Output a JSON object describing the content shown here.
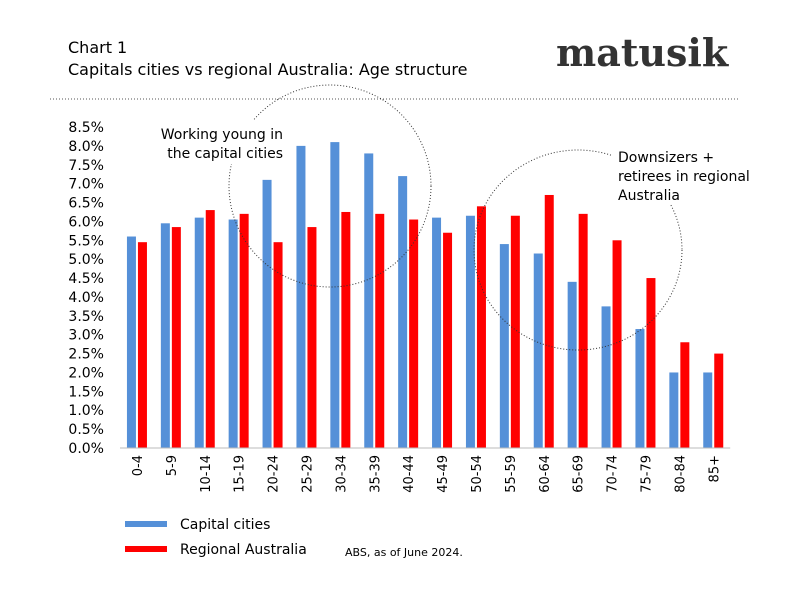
{
  "header": {
    "chart_number": "Chart 1",
    "title": "Capitals cities vs regional Australia:  Age structure",
    "logo": "matusik"
  },
  "source": "ABS, as of June 2024.",
  "colors": {
    "capital": "#5590d8",
    "regional": "#ff0000"
  },
  "chart_data": {
    "type": "bar",
    "title": "Capitals cities vs regional Australia:  Age structure",
    "categories": [
      "0-4",
      "5-9",
      "10-14",
      "15-19",
      "20-24",
      "25-29",
      "30-34",
      "35-39",
      "40-44",
      "45-49",
      "50-54",
      "55-59",
      "60-64",
      "65-69",
      "70-74",
      "75-79",
      "80-84",
      "85+"
    ],
    "series": [
      {
        "name": "Capital cities",
        "color": "#5590d8",
        "values": [
          5.6,
          5.95,
          6.1,
          6.05,
          7.1,
          8.0,
          8.1,
          7.8,
          7.2,
          6.1,
          6.15,
          5.4,
          5.15,
          4.4,
          3.75,
          3.15,
          2.0,
          2.0
        ]
      },
      {
        "name": "Regional Australia",
        "color": "#ff0000",
        "values": [
          5.45,
          5.85,
          6.3,
          6.2,
          5.45,
          5.85,
          6.25,
          6.2,
          6.05,
          5.7,
          6.4,
          6.15,
          6.7,
          6.2,
          5.5,
          4.5,
          2.8,
          2.5
        ]
      }
    ],
    "ylim": [
      0,
      8.5
    ],
    "yticks": [
      "0.0%",
      "0.5%",
      "1.0%",
      "1.5%",
      "2.0%",
      "2.5%",
      "3.0%",
      "3.5%",
      "4.0%",
      "4.5%",
      "5.0%",
      "5.5%",
      "6.0%",
      "6.5%",
      "7.0%",
      "7.5%",
      "8.0%",
      "8.5%"
    ],
    "grid": false,
    "legend": "bottom-left",
    "annotations": [
      {
        "lines": [
          "Working young in",
          "the capital cities"
        ]
      },
      {
        "lines": [
          "Downsizers +",
          "retirees in regional",
          "Australia"
        ]
      }
    ]
  }
}
